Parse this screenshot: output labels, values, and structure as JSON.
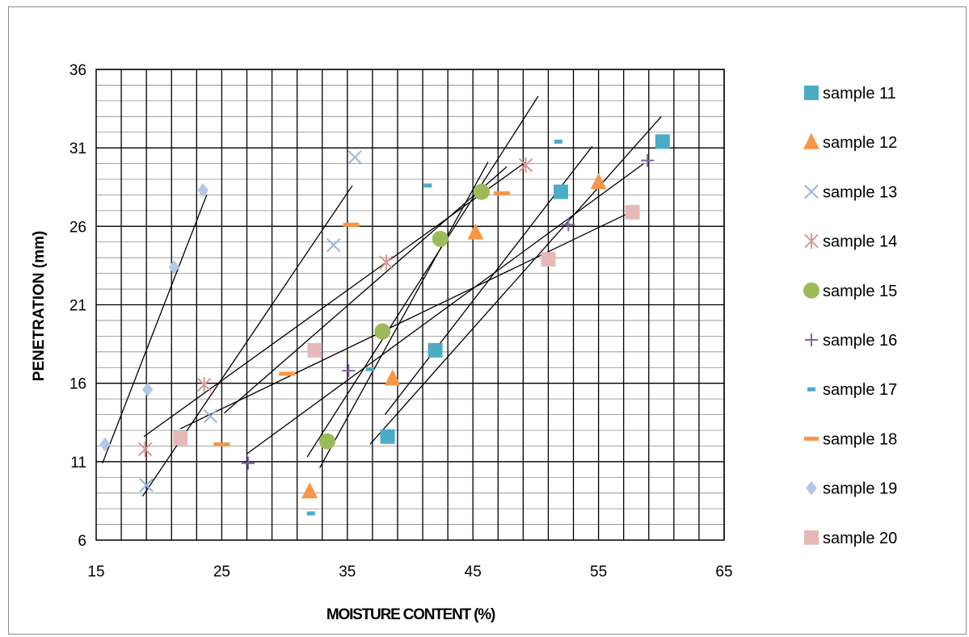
{
  "chart_data": {
    "type": "scatter",
    "xlabel": "MOISTURE CONTENT (%)",
    "ylabel": "PENETRATION (mm)",
    "xlim": [
      15,
      65
    ],
    "ylim": [
      6,
      36
    ],
    "xticks": [
      15,
      25,
      35,
      45,
      55,
      65
    ],
    "yticks": [
      6,
      11,
      16,
      21,
      26,
      31,
      36
    ],
    "grid": "on",
    "legend_position": "right",
    "series": [
      {
        "name": "sample 11",
        "marker": "square",
        "color": "#4bacc6",
        "points": [
          [
            38.2,
            12.6
          ],
          [
            42.0,
            18.1
          ],
          [
            52.0,
            28.2
          ],
          [
            60.1,
            31.4
          ]
        ]
      },
      {
        "name": "sample 12",
        "marker": "triangle",
        "color": "#f79646",
        "points": [
          [
            32.0,
            9.1
          ],
          [
            38.6,
            16.3
          ],
          [
            45.2,
            25.6
          ],
          [
            55.0,
            28.8
          ]
        ]
      },
      {
        "name": "sample 13",
        "marker": "x",
        "color": "#95b3d7",
        "points": [
          [
            19.0,
            9.5
          ],
          [
            24.1,
            13.9
          ],
          [
            33.9,
            24.8
          ],
          [
            35.6,
            30.4
          ]
        ]
      },
      {
        "name": "sample 14",
        "marker": "star",
        "color": "#d99694",
        "points": [
          [
            18.9,
            11.8
          ],
          [
            23.6,
            15.9
          ],
          [
            38.1,
            23.7
          ],
          [
            49.2,
            29.9
          ]
        ]
      },
      {
        "name": "sample 15",
        "marker": "circle",
        "color": "#9bbb59",
        "points": [
          [
            33.4,
            12.3
          ],
          [
            37.8,
            19.3
          ],
          [
            42.4,
            25.2
          ],
          [
            45.7,
            28.2
          ]
        ]
      },
      {
        "name": "sample 16",
        "marker": "plus",
        "color": "#8064a2",
        "points": [
          [
            27.1,
            10.9
          ],
          [
            35.1,
            16.8
          ],
          [
            52.6,
            26.1
          ],
          [
            58.9,
            30.2
          ]
        ]
      },
      {
        "name": "sample 17",
        "marker": "dash",
        "color": "#4bacc6",
        "points": [
          [
            32.1,
            7.7
          ],
          [
            36.8,
            16.9
          ],
          [
            41.4,
            28.6
          ],
          [
            51.8,
            31.4
          ]
        ]
      },
      {
        "name": "sample 18",
        "marker": "dash",
        "color": "#f79646",
        "points": [
          [
            25.0,
            12.1
          ],
          [
            30.2,
            16.6
          ],
          [
            35.3,
            26.1
          ],
          [
            47.3,
            28.1
          ]
        ]
      },
      {
        "name": "sample 19",
        "marker": "diamond",
        "color": "#b4c7e7",
        "points": [
          [
            15.7,
            12.1
          ],
          [
            19.1,
            15.6
          ],
          [
            21.2,
            23.4
          ],
          [
            23.5,
            28.3
          ]
        ]
      },
      {
        "name": "sample 20",
        "marker": "square",
        "color": "#e6b9b8",
        "points": [
          [
            21.7,
            12.5
          ],
          [
            32.4,
            18.1
          ],
          [
            51.0,
            23.9
          ],
          [
            57.7,
            26.9
          ]
        ]
      }
    ],
    "trendlines": [
      {
        "from": [
          15.5,
          10.9
        ],
        "to": [
          23.8,
          28.0
        ]
      },
      {
        "from": [
          18.7,
          8.8
        ],
        "to": [
          35.4,
          28.6
        ]
      },
      {
        "from": [
          18.8,
          12.6
        ],
        "to": [
          49.2,
          30.1
        ]
      },
      {
        "from": [
          21.7,
          13.1
        ],
        "to": [
          57.8,
          27.0
        ]
      },
      {
        "from": [
          25.2,
          14.1
        ],
        "to": [
          47.7,
          29.8
        ]
      },
      {
        "from": [
          27.0,
          11.5
        ],
        "to": [
          58.6,
          30.0
        ]
      },
      {
        "from": [
          31.8,
          11.3
        ],
        "to": [
          50.2,
          34.3
        ]
      },
      {
        "from": [
          32.8,
          10.6
        ],
        "to": [
          46.2,
          30.1
        ]
      },
      {
        "from": [
          36.8,
          12.1
        ],
        "to": [
          60.0,
          33.0
        ]
      },
      {
        "from": [
          38.0,
          14.0
        ],
        "to": [
          54.5,
          31.1
        ]
      }
    ]
  }
}
